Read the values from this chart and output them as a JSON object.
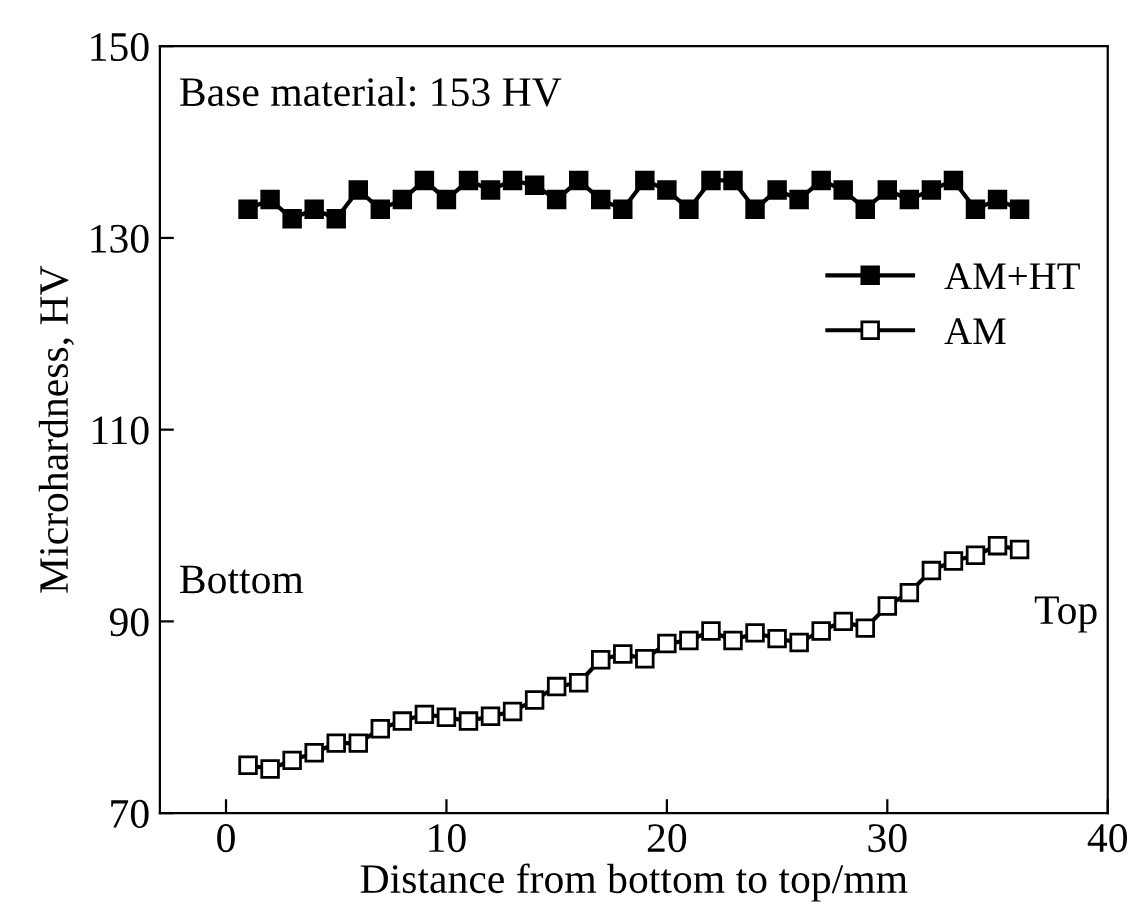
{
  "chart_data": {
    "type": "line",
    "xlabel": "Distance from bottom to top/mm",
    "ylabel": "Microhardness, HV",
    "annotations": [
      "Base material: 153 HV",
      "Bottom",
      "Top"
    ],
    "x": [
      1,
      2,
      3,
      4,
      5,
      6,
      7,
      8,
      9,
      10,
      11,
      12,
      13,
      14,
      15,
      16,
      17,
      18,
      19,
      20,
      21,
      22,
      23,
      24,
      25,
      26,
      27,
      28,
      29,
      30,
      31,
      32,
      33,
      34,
      35,
      36
    ],
    "series": [
      {
        "name": "AM+HT",
        "color": "#000000",
        "marker": "square",
        "values": [
          133,
          134,
          132,
          133,
          132,
          135,
          133,
          134,
          136,
          134,
          136,
          135,
          136,
          135.5,
          134,
          136,
          134,
          133,
          136,
          135,
          133,
          136,
          136,
          133,
          135,
          134,
          136,
          135,
          133,
          135,
          134,
          135,
          136,
          133,
          134,
          133
        ]
      },
      {
        "name": "AM",
        "color": "#000000",
        "marker": "square",
        "values": [
          75,
          74.6,
          75.5,
          76.3,
          77.3,
          77.3,
          78.8,
          79.6,
          80.3,
          80,
          79.6,
          80.1,
          80.6,
          81.8,
          83.2,
          83.6,
          86,
          86.6,
          86.1,
          87.7,
          88,
          89,
          88,
          88.8,
          88.2,
          87.8,
          89,
          90,
          89.3,
          91.6,
          93,
          95.3,
          96.3,
          96.9,
          97.9,
          97.5
        ]
      }
    ],
    "xlim": [
      -3,
      40
    ],
    "xticks": [
      0,
      10,
      20,
      30,
      40
    ],
    "ylim": [
      70,
      150
    ],
    "yticks": [
      70,
      90,
      110,
      130,
      150
    ],
    "grid": false,
    "legend": "right",
    "line_style": "solid"
  }
}
